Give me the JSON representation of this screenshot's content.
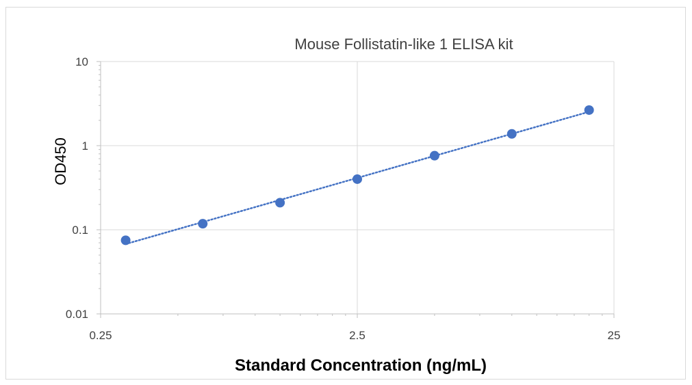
{
  "chart_data": {
    "type": "scatter",
    "title": "Mouse Follistatin-like 1  ELISA kit",
    "xlabel": "Standard Concentration (ng/mL)",
    "ylabel": "OD450",
    "x_scale": "log",
    "y_scale": "log",
    "xlim": [
      0.25,
      25
    ],
    "ylim": [
      0.01,
      10
    ],
    "x_ticks": [
      "0.25",
      "2.5",
      "25"
    ],
    "y_ticks": [
      "0.01",
      "0.1",
      "1",
      "10"
    ],
    "grid": true,
    "trendline": "dotted",
    "colors": {
      "marker": "#4472c4",
      "grid": "#d9d9d9",
      "axis": "#bfbfbf"
    },
    "series": [
      {
        "x": [
          0.313,
          0.625,
          1.25,
          2.5,
          5,
          10,
          20
        ],
        "y": [
          0.075,
          0.118,
          0.21,
          0.4,
          0.76,
          1.38,
          2.65
        ]
      }
    ]
  }
}
